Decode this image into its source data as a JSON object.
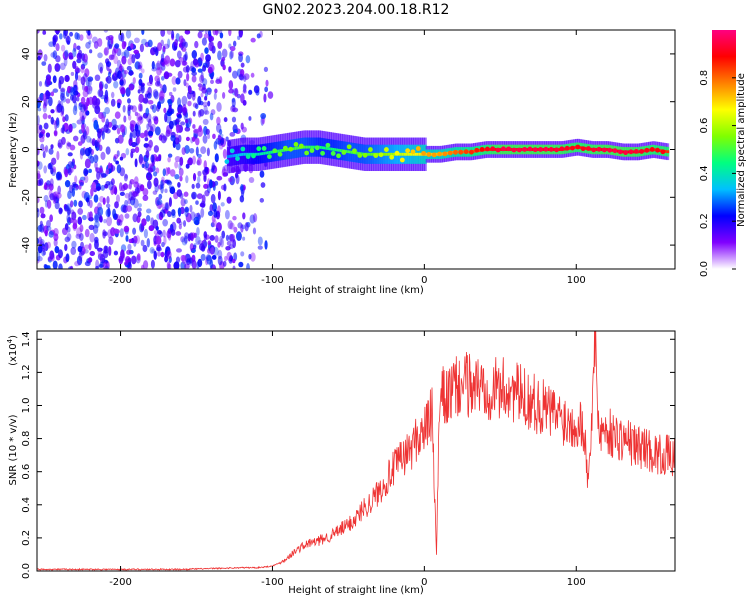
{
  "title": "GN02.2023.204.00.18.R12",
  "chart_data": [
    {
      "type": "heatmap",
      "xlabel": "Height of straight line (km)",
      "ylabel": "Frequency (Hz)",
      "xlim": [
        -255,
        165
      ],
      "ylim": [
        -50,
        50
      ],
      "xticks": [
        -200,
        -100,
        0,
        100
      ],
      "yticks": [
        -40,
        -20,
        0,
        20,
        40
      ],
      "colorbar": {
        "label": "Normalized spectral amplitude",
        "range": [
          0.0,
          1.0
        ],
        "ticks": [
          "0.0",
          "0.2",
          "0.4",
          "0.6",
          "0.8"
        ],
        "colors": [
          "#ffffff",
          "#8000ff",
          "#0000ff",
          "#00c0ff",
          "#00ff80",
          "#80ff00",
          "#ffff00",
          "#ff8000",
          "#ff0000",
          "#ff0080"
        ]
      },
      "ridge": {
        "x": [
          -130,
          -120,
          -110,
          -100,
          -90,
          -80,
          -70,
          -60,
          -50,
          -40,
          -30,
          -20,
          -10,
          0,
          10,
          20,
          30,
          40,
          50,
          60,
          70,
          80,
          90,
          100,
          110,
          120,
          130,
          140,
          150,
          160
        ],
        "frequency": [
          -3,
          -2,
          -2,
          -1,
          0,
          1,
          1,
          0,
          -1,
          -2,
          -2,
          -2,
          -2,
          -2,
          -2,
          -1,
          -1,
          0,
          0,
          0,
          0,
          0,
          0,
          1,
          0,
          0,
          -1,
          -1,
          0,
          -1
        ],
        "amplitude": [
          0.3,
          0.35,
          0.4,
          0.45,
          0.5,
          0.5,
          0.45,
          0.45,
          0.5,
          0.5,
          0.55,
          0.6,
          0.65,
          0.7,
          0.7,
          0.75,
          0.8,
          0.85,
          0.9,
          0.9,
          0.9,
          0.9,
          0.88,
          0.85,
          0.88,
          0.9,
          0.9,
          0.88,
          0.85,
          0.85
        ]
      },
      "noise_region": {
        "x": [
          -255,
          -110
        ],
        "frequency": [
          -50,
          50
        ],
        "amplitude": [
          0.05,
          0.3
        ]
      }
    },
    {
      "type": "line",
      "xlabel": "Height of straight line (km)",
      "ylabel": "SNR (10 * v/v)",
      "y_multiplier": "(x10",
      "y_multiplier_exp": "4",
      "y_multiplier_close": ")",
      "xlim": [
        -255,
        165
      ],
      "ylim": [
        0,
        1.45
      ],
      "xticks": [
        -200,
        -100,
        0,
        100
      ],
      "yticks": [
        0.0,
        0.2,
        0.4,
        0.6,
        0.8,
        1.0,
        1.2,
        1.4
      ],
      "color": "#ee3333",
      "series": [
        {
          "x": [
            -255,
            -240,
            -220,
            -200,
            -180,
            -160,
            -140,
            -120,
            -110,
            -100,
            -95,
            -90,
            -85,
            -80,
            -75,
            -70,
            -65,
            -60,
            -55,
            -50,
            -45,
            -40,
            -35,
            -30,
            -25,
            -20,
            -15,
            -10,
            -5,
            0,
            5,
            8,
            10,
            12,
            15,
            20,
            25,
            30,
            35,
            40,
            45,
            50,
            55,
            60,
            65,
            70,
            75,
            80,
            85,
            90,
            95,
            100,
            105,
            108,
            110,
            112,
            115,
            120,
            125,
            130,
            135,
            140,
            145,
            150,
            155,
            160,
            165
          ],
          "values": [
            0.01,
            0.01,
            0.01,
            0.01,
            0.01,
            0.01,
            0.015,
            0.02,
            0.02,
            0.03,
            0.05,
            0.08,
            0.12,
            0.15,
            0.17,
            0.18,
            0.2,
            0.22,
            0.25,
            0.28,
            0.32,
            0.38,
            0.42,
            0.48,
            0.55,
            0.62,
            0.68,
            0.72,
            0.8,
            0.85,
            0.95,
            0.1,
            1.0,
            1.05,
            1.05,
            1.1,
            1.12,
            1.13,
            1.12,
            1.12,
            1.1,
            1.1,
            1.1,
            1.08,
            1.05,
            1.03,
            1.0,
            0.98,
            0.95,
            0.93,
            0.9,
            0.9,
            0.88,
            0.5,
            0.9,
            1.45,
            0.85,
            0.85,
            0.82,
            0.8,
            0.78,
            0.75,
            0.75,
            0.72,
            0.7,
            0.7,
            0.68
          ]
        }
      ]
    }
  ]
}
